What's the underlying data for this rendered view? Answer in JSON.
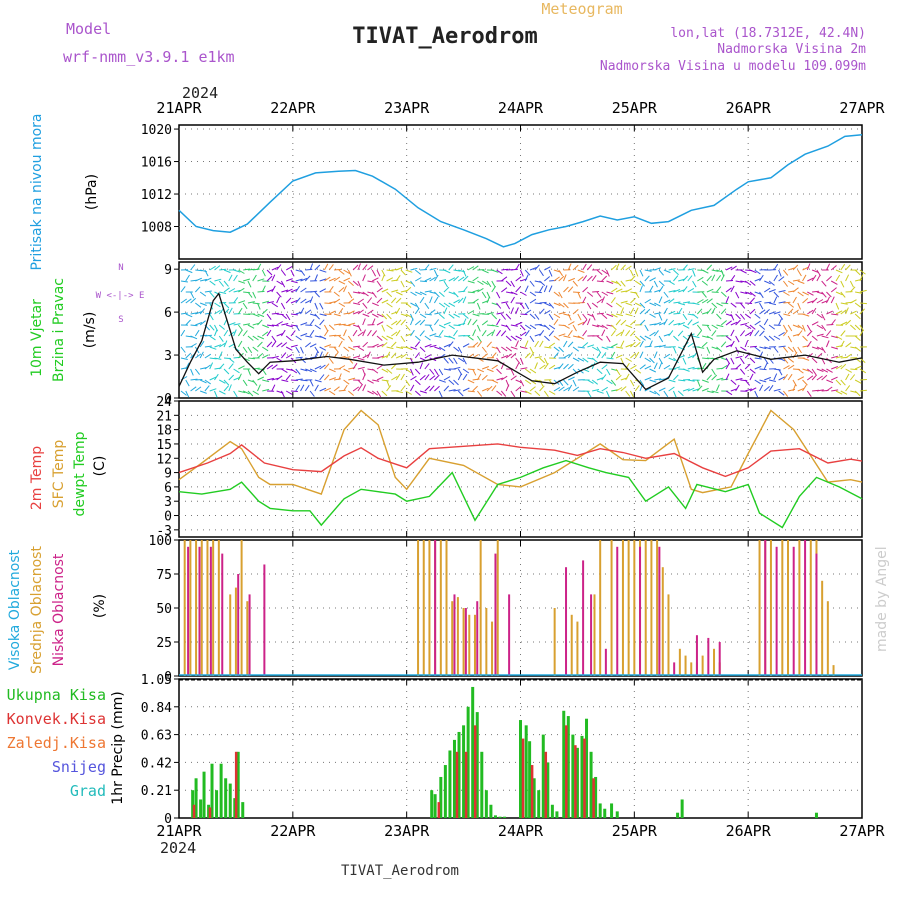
{
  "header": {
    "model_label": "Model",
    "model_value": "wrf-nmm_v3.9.1  e1km",
    "title": "TIVAT_Aerodrom",
    "meteogram": "Meteogram",
    "coords": "lon,lat (18.7312E, 42.4N)",
    "elevation": "Nadmorska Visina 2m",
    "model_elevation": "Nadmorska Visina u modelu 109.099m",
    "year": "2024",
    "footer_station": "TIVAT_Aerodrom",
    "credit": "made by Angel"
  },
  "colors": {
    "pressure": "#1f9fe0",
    "temp2m": "#e84040",
    "sfc_temp": "#d8a030",
    "dewpoint": "#22cc22",
    "high_cloud": "#22aadd",
    "mid_cloud": "#d8a030",
    "low_cloud": "#cc2288",
    "total_precip": "#22bb22",
    "conv_precip": "#dd3333",
    "ice_precip": "#ee7733",
    "snow": "#5555dd",
    "hail": "#22bbbb",
    "wind_label": "#22cc22",
    "axis_label_violet": "#aa55cc"
  },
  "chart_data": {
    "type": "line",
    "x_ticks": [
      "21APR",
      "22APR",
      "23APR",
      "24APR",
      "25APR",
      "26APR",
      "27APR"
    ],
    "panels": [
      {
        "id": "pressure",
        "ylabel": "Pritisak na nivou mora",
        "unit": "(hPa)",
        "ylim": [
          1004,
          1020.5
        ],
        "yticks": [
          1008,
          1012,
          1016,
          1020
        ],
        "series": [
          {
            "x": [
              0,
              0.15,
              0.3,
              0.45,
              0.6,
              0.8,
              1.0,
              1.2,
              1.4,
              1.55,
              1.7,
              1.9,
              2.1,
              2.3,
              2.5,
              2.7,
              2.85,
              2.95,
              3.1,
              3.25,
              3.4,
              3.55,
              3.7,
              3.85,
              4.0,
              4.15,
              4.3,
              4.5,
              4.7,
              4.9,
              5.0,
              5.2,
              5.35,
              5.5,
              5.7,
              5.85,
              6.0
            ],
            "y": [
              1010,
              1008,
              1007.5,
              1007.3,
              1008.3,
              1011,
              1013.6,
              1014.6,
              1014.8,
              1014.9,
              1014.2,
              1012.6,
              1010.3,
              1008.6,
              1007.6,
              1006.5,
              1005.5,
              1005.9,
              1007,
              1007.6,
              1008,
              1008.6,
              1009.3,
              1008.8,
              1009.2,
              1008.4,
              1008.6,
              1010,
              1010.6,
              1012.6,
              1013.5,
              1014,
              1015.6,
              1016.9,
              1017.9,
              1019.1,
              1019.3
            ]
          }
        ]
      },
      {
        "id": "wind",
        "ylabel": "10m Vjetar",
        "ylabel2": "Brzina i Pravac",
        "unit": "(m/s)",
        "compass": "W <-|-> E",
        "compass_n": "N",
        "compass_s": "S",
        "ylim": [
          0,
          9.5
        ],
        "yticks": [
          0,
          3,
          6,
          9
        ],
        "speed": {
          "x": [
            0,
            0.1,
            0.2,
            0.3,
            0.35,
            0.4,
            0.5,
            0.6,
            0.7,
            0.8,
            1.0,
            1.3,
            1.5,
            1.8,
            2.1,
            2.4,
            2.8,
            3.1,
            3.3,
            3.5,
            3.7,
            3.9,
            4.1,
            4.3,
            4.5,
            4.6,
            4.7,
            4.9,
            5.2,
            5.5,
            5.8,
            6.0
          ],
          "y": [
            0.8,
            2.5,
            4,
            6.8,
            7.3,
            6,
            3.4,
            2.5,
            1.7,
            2.5,
            2.6,
            2.9,
            2.7,
            2.3,
            2.5,
            3.0,
            2.6,
            1.2,
            1.0,
            1.8,
            2.5,
            2.4,
            0.6,
            1.4,
            4.5,
            1.8,
            2.7,
            3.3,
            2.7,
            3.0,
            2.5,
            2.8
          ]
        }
      },
      {
        "id": "temperature",
        "ylabel": "2m Temp",
        "ylabel2": "SFC Temp",
        "ylabel3": "dewpt Temp",
        "unit": "(C)",
        "ylim": [
          -4.5,
          24
        ],
        "yticks": [
          -3,
          0,
          3,
          6,
          9,
          12,
          15,
          18,
          21,
          24
        ],
        "series": [
          {
            "name": "2m Temp",
            "x": [
              0,
              0.25,
              0.45,
              0.55,
              0.75,
              1.0,
              1.25,
              1.45,
              1.6,
              1.75,
              2.0,
              2.2,
              2.5,
              2.8,
              3.0,
              3.3,
              3.5,
              3.7,
              3.9,
              4.1,
              4.35,
              4.6,
              4.8,
              5.0,
              5.2,
              5.45,
              5.7,
              5.9,
              6.0
            ],
            "y": [
              9,
              11,
              13,
              14.8,
              11,
              9.6,
              9.2,
              12.5,
              14.2,
              12,
              10,
              14,
              14.5,
              15,
              14.3,
              13.7,
              12.6,
              14,
              13.2,
              12,
              13,
              10,
              8.2,
              10,
              13.5,
              14,
              11,
              11.8,
              11.4
            ]
          },
          {
            "name": "SFC Temp",
            "x": [
              0,
              0.2,
              0.45,
              0.55,
              0.7,
              0.8,
              1.0,
              1.25,
              1.45,
              1.6,
              1.75,
              1.9,
              2.0,
              2.2,
              2.5,
              2.8,
              3.0,
              3.3,
              3.5,
              3.7,
              3.9,
              4.1,
              4.35,
              4.5,
              4.6,
              4.85,
              5.0,
              5.2,
              5.4,
              5.7,
              5.9,
              6.0
            ],
            "y": [
              7.5,
              11,
              15.5,
              14,
              8,
              6.5,
              6.5,
              4.5,
              18,
              22,
              19,
              8,
              5.5,
              12,
              10.5,
              6.5,
              6,
              9,
              12,
              15,
              11.7,
              11.5,
              16,
              5.5,
              4.8,
              6,
              13,
              22,
              18,
              7,
              7.5,
              7
            ]
          },
          {
            "name": "dewpt Temp",
            "x": [
              0,
              0.2,
              0.45,
              0.55,
              0.7,
              0.8,
              1.0,
              1.15,
              1.25,
              1.45,
              1.6,
              1.75,
              1.9,
              2.0,
              2.2,
              2.4,
              2.6,
              2.8,
              3.0,
              3.2,
              3.4,
              3.6,
              3.75,
              3.95,
              4.1,
              4.3,
              4.45,
              4.55,
              4.8,
              5.0,
              5.1,
              5.3,
              5.45,
              5.6,
              5.8,
              6.0
            ],
            "y": [
              5,
              4.5,
              5.5,
              7,
              3,
              1.5,
              1,
              1,
              -2,
              3.5,
              5.5,
              5,
              4.5,
              3,
              4,
              9,
              -1,
              6.5,
              8,
              10,
              11.5,
              10,
              9,
              8,
              3,
              6,
              1.5,
              6.5,
              5,
              6.5,
              0.5,
              -2.5,
              4,
              8,
              6,
              3.5
            ]
          }
        ]
      },
      {
        "id": "clouds",
        "ylabel": "Visoka Oblacnost",
        "ylabel2": "Srednja Oblacnost",
        "ylabel3": "Niska Oblacnost",
        "unit": "(%)",
        "ylim": [
          0,
          100
        ],
        "yticks": [
          0,
          25,
          50,
          75,
          100
        ],
        "series": [
          {
            "name": "Srednja Oblacnost",
            "x": [
              0.05,
              0.1,
              0.15,
              0.2,
              0.25,
              0.3,
              0.35,
              0.45,
              0.5,
              0.55,
              0.6,
              2.1,
              2.15,
              2.2,
              2.25,
              2.3,
              2.35,
              2.4,
              2.45,
              2.5,
              2.55,
              2.6,
              2.65,
              2.7,
              2.75,
              2.8,
              3.3,
              3.45,
              3.5,
              3.65,
              3.7,
              3.8,
              3.9,
              3.95,
              4.0,
              4.05,
              4.1,
              4.15,
              4.2,
              4.25,
              4.3,
              4.4,
              4.45,
              4.5,
              4.55,
              4.6,
              4.7,
              4.75,
              5.1,
              5.15,
              5.2,
              5.3,
              5.35,
              5.45,
              5.55,
              5.6,
              5.65,
              5.7,
              5.75
            ],
            "y": [
              100,
              100,
              100,
              100,
              100,
              100,
              100,
              60,
              65,
              100,
              55,
              100,
              100,
              100,
              100,
              100,
              100,
              55,
              58,
              50,
              45,
              45,
              100,
              50,
              40,
              100,
              50,
              45,
              40,
              60,
              100,
              100,
              100,
              100,
              100,
              100,
              100,
              100,
              100,
              80,
              60,
              20,
              15,
              10,
              10,
              15,
              20,
              10,
              100,
              100,
              100,
              100,
              100,
              100,
              100,
              100,
              70,
              55,
              8
            ]
          },
          {
            "name": "Niska Oblacnost",
            "x": [
              0.08,
              0.18,
              0.28,
              0.38,
              0.52,
              0.62,
              0.75,
              2.25,
              2.42,
              2.52,
              2.62,
              2.78,
              2.9,
              3.4,
              3.55,
              3.62,
              3.75,
              3.85,
              4.05,
              4.22,
              4.35,
              4.55,
              4.65,
              4.75,
              5.15,
              5.25,
              5.4,
              5.5,
              5.6
            ],
            "y": [
              95,
              95,
              95,
              90,
              75,
              60,
              82,
              100,
              60,
              50,
              55,
              90,
              60,
              80,
              85,
              60,
              20,
              95,
              95,
              95,
              10,
              30,
              28,
              25,
              100,
              95,
              95,
              100,
              90
            ]
          },
          {
            "name": "Visoka Oblacnost",
            "x": [
              0.0,
              6.0
            ],
            "y": [
              0,
              0
            ]
          }
        ]
      },
      {
        "id": "precip",
        "ylabel": "1hr Precip (mm)",
        "ylim": [
          0,
          1.05
        ],
        "yticks": [
          0,
          0.21,
          0.42,
          0.63,
          0.84,
          1.05
        ],
        "legend": [
          "Ukupna Kisa",
          "Konvek.Kisa",
          "Zaledj.Kisa",
          "Snijeg",
          "Grad"
        ],
        "series": [
          {
            "name": "Ukupna Kisa",
            "x": [
              0.12,
              0.15,
              0.19,
              0.22,
              0.26,
              0.29,
              0.33,
              0.37,
              0.41,
              0.45,
              0.49,
              0.52,
              0.56,
              2.22,
              2.25,
              2.3,
              2.34,
              2.38,
              2.42,
              2.46,
              2.5,
              2.54,
              2.58,
              2.62,
              2.66,
              2.7,
              2.74,
              2.78,
              2.82,
              2.86,
              3.0,
              3.05,
              3.08,
              3.12,
              3.16,
              3.2,
              3.24,
              3.28,
              3.32,
              3.38,
              3.42,
              3.46,
              3.5,
              3.54,
              3.58,
              3.62,
              3.66,
              3.7,
              3.74,
              3.8,
              3.85,
              4.38,
              4.42,
              5.6
            ],
            "y": [
              0.21,
              0.3,
              0.14,
              0.35,
              0.1,
              0.41,
              0.21,
              0.41,
              0.3,
              0.26,
              0.15,
              0.5,
              0.12,
              0.21,
              0.18,
              0.31,
              0.4,
              0.51,
              0.59,
              0.65,
              0.7,
              0.84,
              0.99,
              0.8,
              0.5,
              0.21,
              0.1,
              0.02,
              0.01,
              0.01,
              0.74,
              0.7,
              0.58,
              0.3,
              0.21,
              0.63,
              0.42,
              0.1,
              0.05,
              0.81,
              0.77,
              0.63,
              0.53,
              0.62,
              0.75,
              0.5,
              0.31,
              0.11,
              0.07,
              0.11,
              0.05,
              0.04,
              0.14,
              0.04
            ]
          },
          {
            "name": "Konvek.Kisa",
            "x": [
              0.13,
              0.27,
              0.5,
              2.28,
              2.44,
              2.52,
              2.6,
              3.02,
              3.1,
              3.22,
              3.4,
              3.48,
              3.56,
              3.64
            ],
            "y": [
              0.1,
              0.08,
              0.5,
              0.12,
              0.5,
              0.5,
              0.7,
              0.6,
              0.4,
              0.5,
              0.7,
              0.55,
              0.6,
              0.3
            ]
          },
          {
            "name": "Zaledj.Kisa",
            "x": [
              0.0,
              6.0
            ],
            "y": [
              0,
              0
            ]
          },
          {
            "name": "Snijeg",
            "x": [
              0.0,
              6.0
            ],
            "y": [
              0,
              0
            ]
          },
          {
            "name": "Grad",
            "x": [
              0.0,
              6.0
            ],
            "y": [
              0,
              0
            ]
          }
        ]
      }
    ],
    "xlim": [
      0,
      6
    ],
    "grid": true
  }
}
